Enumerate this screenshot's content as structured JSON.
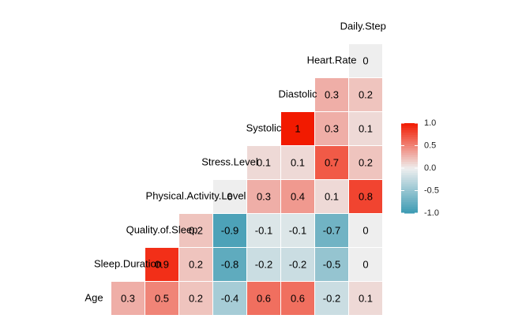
{
  "chart_data": {
    "type": "correlation-heatmap",
    "variables": [
      "Age",
      "Sleep.Duration",
      "Quality.of.Sleep",
      "Physical.Activity.Level",
      "Stress.Level",
      "Systolic",
      "Diastolic",
      "Heart.Rate",
      "Daily.Steps"
    ],
    "values": [
      [
        0.3,
        0.5,
        0.2,
        -0.4,
        0.6,
        0.6,
        -0.2,
        0.1
      ],
      [
        0.9,
        0.2,
        -0.8,
        -0.2,
        -0.2,
        -0.5,
        0
      ],
      [
        0.2,
        -0.9,
        -0.1,
        -0.1,
        -0.7,
        0
      ],
      [
        0,
        0.3,
        0.4,
        0.1,
        0.8
      ],
      [
        0.1,
        0.1,
        0.7,
        0.2
      ],
      [
        1,
        0.3,
        0.1
      ],
      [
        0.3,
        0.2
      ],
      [
        0
      ]
    ],
    "colors": {
      "low": "#3B9AB2",
      "mid": "#EEEEEE",
      "high": "#F21A00"
    },
    "legend_lim": [
      -1,
      1
    ],
    "legend_ticks": [
      {
        "value": 1,
        "label": "1.0"
      },
      {
        "value": 0.5,
        "label": "0.5"
      },
      {
        "value": 0,
        "label": "0.0"
      },
      {
        "value": -0.5,
        "label": "-0.5"
      },
      {
        "value": -1,
        "label": "-1.0"
      }
    ]
  }
}
